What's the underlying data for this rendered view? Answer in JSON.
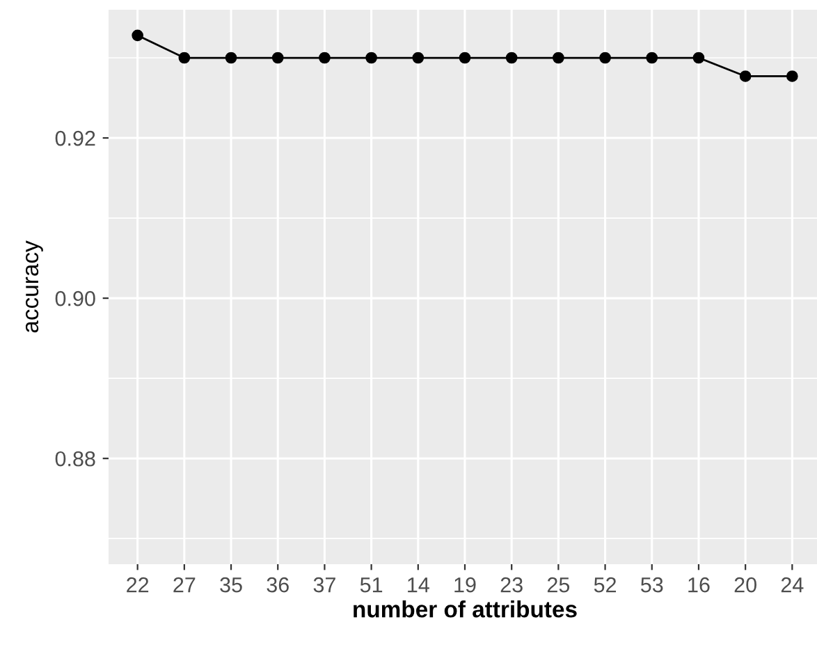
{
  "chart_data": {
    "type": "line",
    "xlabel": "number of attributes",
    "ylabel": "accuracy",
    "categories": [
      "22",
      "27",
      "35",
      "36",
      "37",
      "51",
      "14",
      "19",
      "23",
      "25",
      "52",
      "53",
      "16",
      "20",
      "24"
    ],
    "series": [
      {
        "color": "#000000",
        "values": [
          0.9328,
          0.93,
          0.93,
          0.93,
          0.93,
          0.93,
          0.93,
          0.93,
          0.93,
          0.93,
          0.93,
          0.93,
          0.93,
          0.9277,
          0.9277
        ]
      }
    ],
    "ylim": [
      0.8668,
      0.936
    ],
    "yticks": [
      {
        "value": 0.87,
        "label": null
      },
      0.88,
      {
        "value": 0.89,
        "label": null
      },
      {
        "value": 0.9,
        "label": "0.90"
      },
      {
        "value": 0.91,
        "label": null
      },
      0.92,
      {
        "value": 0.93,
        "label": null
      }
    ],
    "grid": true,
    "marker": "circle",
    "line_style": "solid",
    "legend": false
  }
}
